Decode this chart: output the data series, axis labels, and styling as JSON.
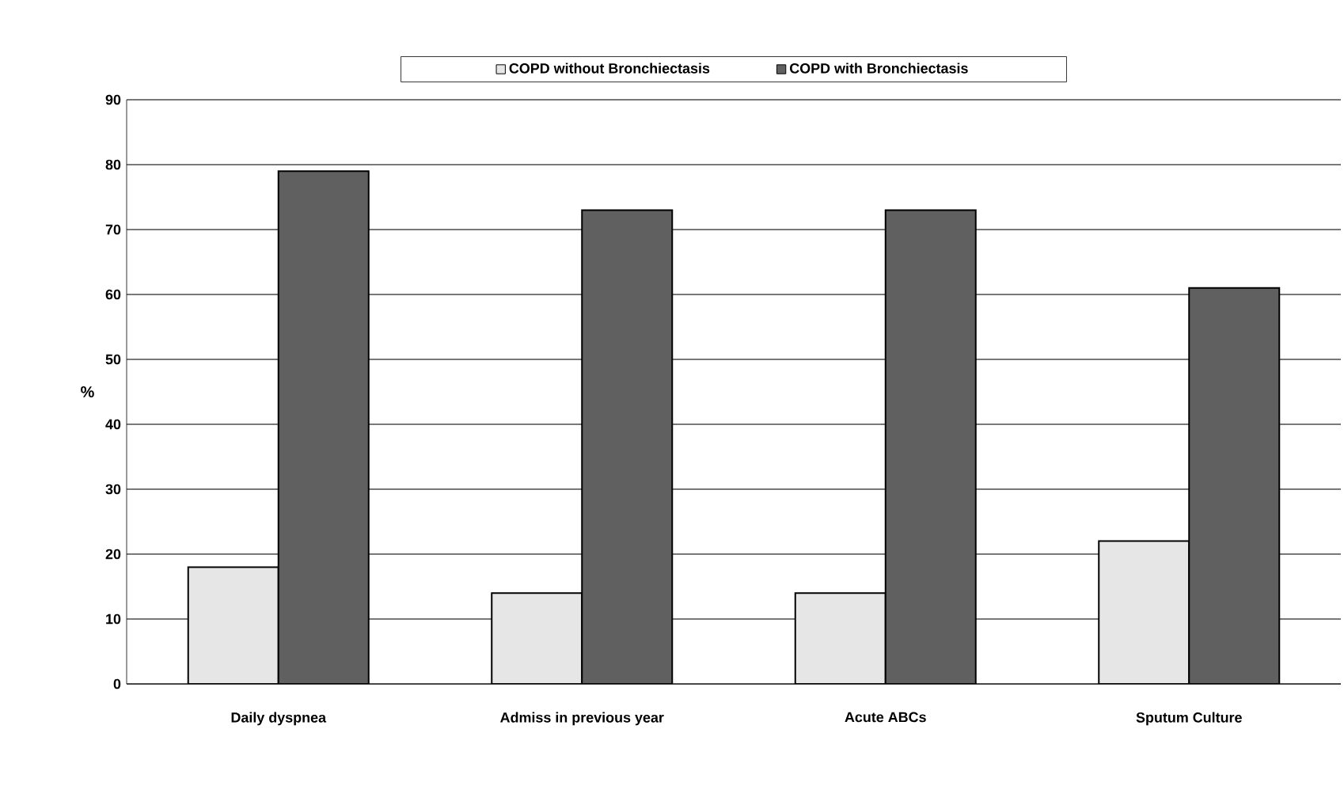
{
  "chart_data": {
    "type": "bar",
    "ylabel": "%",
    "categories": [
      "Daily dyspnea",
      "Admiss in previous year",
      "Acute ABCs",
      "Sputum Culture"
    ],
    "series": [
      {
        "name": "COPD without Bronchiectasis",
        "color": "#e6e6e6",
        "values": [
          18,
          14,
          14,
          22
        ]
      },
      {
        "name": "COPD with Bronchiectasis",
        "color": "#606060",
        "values": [
          79,
          73,
          73,
          61
        ]
      }
    ],
    "ylim": [
      0,
      90
    ],
    "yticks": [
      0,
      10,
      20,
      30,
      40,
      50,
      60,
      70,
      80,
      90
    ],
    "grid": "y",
    "legend": "top"
  }
}
